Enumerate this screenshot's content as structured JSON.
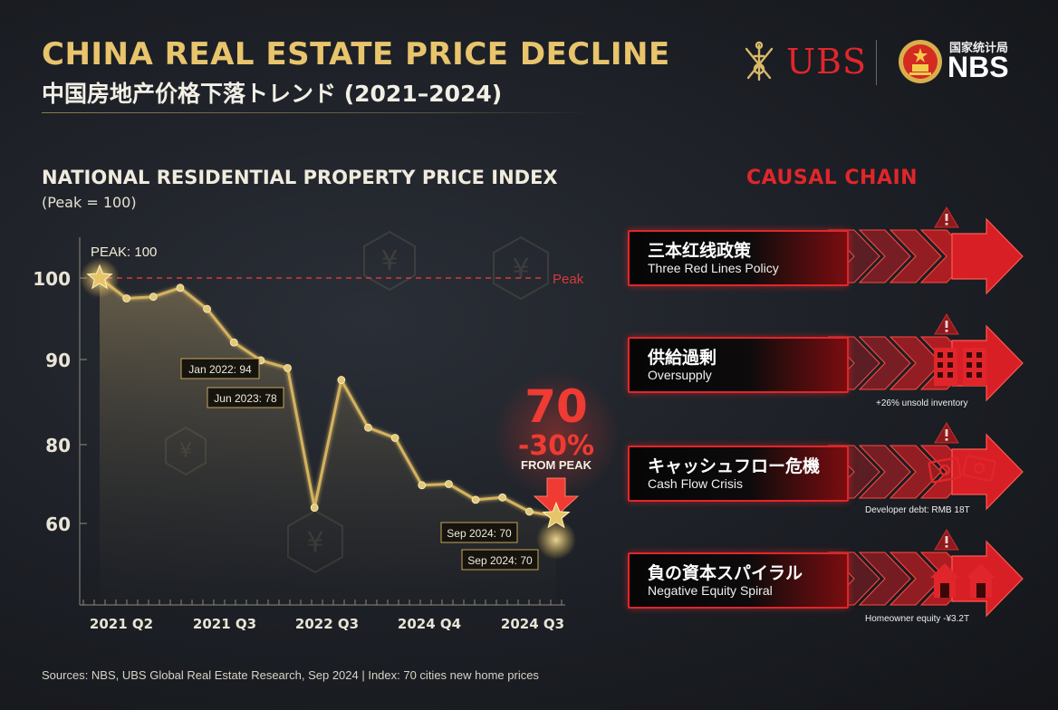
{
  "header": {
    "title": "CHINA REAL ESTATE PRICE DECLINE",
    "subtitle": "中国房地产价格下落トレンド (2021–2024)"
  },
  "logos": {
    "ubs": "UBS",
    "nbs": "NBS",
    "nbs_cn": "国家统计局",
    "ubs_icon": "ubs-keys-icon",
    "nbs_icon": "nbs-emblem-icon"
  },
  "chart_data": {
    "type": "line",
    "title": "NATIONAL RESIDENTIAL PROPERTY PRICE INDEX",
    "subtitle": "(Peak = 100)",
    "y_ticks": [
      100,
      90,
      80,
      60
    ],
    "x_ticks": [
      "2021 Q2",
      "2021 Q3",
      "2022 Q3",
      "2024 Q4",
      "2024 Q3"
    ],
    "series": [
      {
        "values": [
          100,
          97.5,
          97.7,
          98.8,
          96.2,
          92.1,
          89.9,
          89.0,
          64.0,
          87.6,
          82.0,
          80.8,
          69.7,
          70.0,
          66.0,
          66.6,
          63.0,
          61.8
        ]
      }
    ],
    "reference_line": {
      "value": 100,
      "label": "Peak"
    },
    "annotations": {
      "peak": "PEAK: 100",
      "jan2022": "Jan 2022: 94",
      "jun2023": "Jun 2023: 78",
      "sep2024_a": "Sep 2024: 70",
      "sep2024_b": "Sep 2024: 70",
      "callout_value": "70",
      "callout_change": "-30%",
      "callout_from": "FROM PEAK"
    },
    "colors": {
      "line": "#d4b25e",
      "reference": "#d63a3a",
      "callout": "#ef3b33"
    }
  },
  "causal": {
    "title": "CAUSAL CHAIN",
    "items": [
      {
        "jp": "三本红线政策",
        "en": "Three Red Lines Policy",
        "note": "",
        "icon": "warning-icon"
      },
      {
        "jp": "供給過剰",
        "en": "Oversupply",
        "note": "+26% unsold inventory",
        "icon": "buildings-icon"
      },
      {
        "jp": "キャッシュフロー危機",
        "en": "Cash Flow Crisis",
        "note": "Developer debt: RMB 18T",
        "icon": "money-icon"
      },
      {
        "jp": "負の資本スパイラル",
        "en": "Negative Equity Spiral",
        "note": "Homeowner equity -¥3.2T",
        "icon": "houses-icon"
      }
    ]
  },
  "source": "Sources: NBS, UBS Global Real Estate Research, Sep 2024 | Index: 70 cities new home prices"
}
